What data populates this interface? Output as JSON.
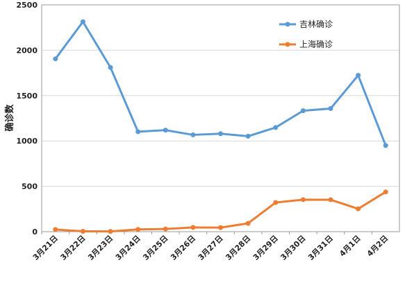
{
  "chart_data": {
    "type": "line",
    "categories": [
      "3月21日",
      "3月22日",
      "3月23日",
      "3月24日",
      "3月25日",
      "3月26日",
      "3月27日",
      "3月28日",
      "3月29日",
      "3月30日",
      "3月31日",
      "4月1日",
      "4月2日"
    ],
    "series": [
      {
        "name": "吉林确诊",
        "color": "#5B9BD5",
        "values": [
          1905,
          2314,
          1810,
          1102,
          1119,
          1067,
          1080,
          1052,
          1148,
          1333,
          1357,
          1723,
          950
        ]
      },
      {
        "name": "上海确诊",
        "color": "#ED7D31",
        "values": [
          24,
          4,
          3,
          25,
          30,
          47,
          45,
          92,
          321,
          353,
          352,
          252,
          438
        ]
      }
    ],
    "ylabel": "确诊数",
    "ylim": [
      0,
      2500
    ],
    "yticks": [
      "0",
      "500",
      "1000",
      "1500",
      "2000",
      "2500"
    ],
    "grid": true,
    "legend": "top-right"
  }
}
